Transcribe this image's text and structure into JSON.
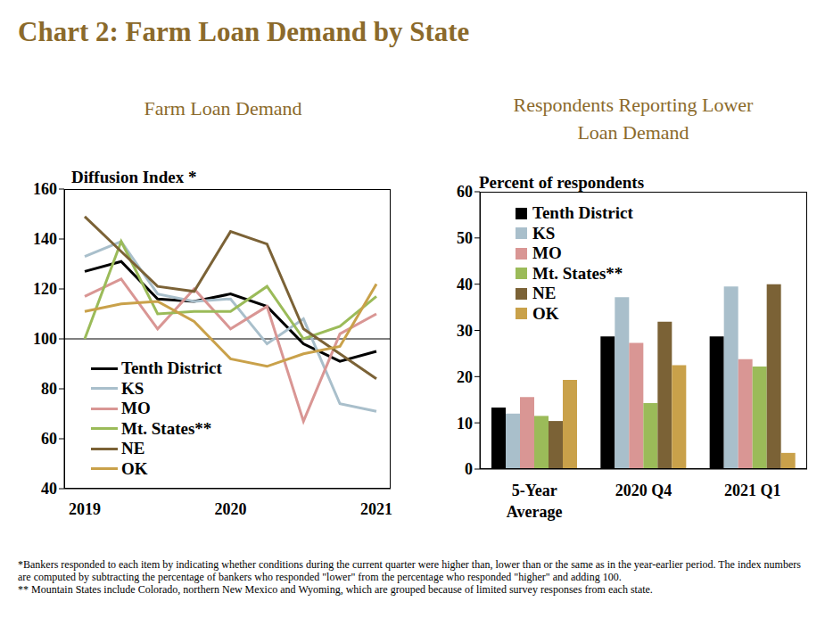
{
  "title": "Chart 2: Farm Loan Demand by State",
  "footnotes": [
    "*Bankers responded to each item by indicating whether conditions during the current quarter were higher than, lower than or the same as in the year-earlier period. The index numbers are computed by subtracting the percentage of bankers who responded \"lower\" from the percentage who responded \"higher\" and adding 100.",
    "** Mountain States include Colorado, northern New Mexico and Wyoming, which are grouped because of limited survey responses from each state."
  ],
  "chart_data": [
    {
      "type": "line",
      "subtitle": "Farm Loan Demand",
      "ylabel": "Diffusion Index *",
      "categories": [
        "2019",
        null,
        null,
        null,
        "2020",
        null,
        null,
        null,
        "2021"
      ],
      "series": [
        {
          "name": "Tenth District",
          "color": "#000000",
          "values": [
            127,
            131,
            116,
            115,
            118,
            113,
            98,
            91,
            95
          ]
        },
        {
          "name": "KS",
          "color": "#A9BFCB",
          "values": [
            133,
            139,
            118,
            115,
            116,
            98,
            108,
            74,
            71
          ]
        },
        {
          "name": "MO",
          "color": "#D99694",
          "values": [
            117,
            124,
            104,
            120,
            104,
            113,
            67,
            102,
            110
          ]
        },
        {
          "name": "Mt. States**",
          "color": "#9BBB59",
          "values": [
            100,
            139,
            110,
            111,
            111,
            121,
            100,
            105,
            117
          ]
        },
        {
          "name": "NE",
          "color": "#7B6236",
          "values": [
            149,
            135,
            121,
            119,
            143,
            138,
            104,
            94,
            84
          ]
        },
        {
          "name": "OK",
          "color": "#C9A14A",
          "values": [
            111,
            114,
            115,
            107,
            92,
            89,
            94,
            97,
            122
          ]
        }
      ],
      "ylim": [
        40,
        160
      ],
      "yticks": [
        40,
        60,
        80,
        100,
        120,
        140,
        160
      ],
      "hlines": [
        100
      ],
      "legend": "lower left",
      "grid": false
    },
    {
      "type": "bar",
      "subtitle": "Respondents Reporting Lower Loan Demand",
      "ylabel": "Percent of respondents",
      "categories": [
        "5-Year Average",
        "2020 Q4",
        "2021 Q1"
      ],
      "series": [
        {
          "name": "Tenth District",
          "color": "#000000",
          "values": [
            13.3,
            28.7,
            28.7
          ]
        },
        {
          "name": "KS",
          "color": "#A9BFCB",
          "values": [
            12,
            37.2,
            39.5
          ]
        },
        {
          "name": "MO",
          "color": "#D99694",
          "values": [
            15.6,
            27.3,
            23.8
          ]
        },
        {
          "name": "Mt. States**",
          "color": "#9BBB59",
          "values": [
            11.5,
            14.3,
            22.2
          ]
        },
        {
          "name": "NE",
          "color": "#7B6236",
          "values": [
            10.4,
            31.9,
            40
          ]
        },
        {
          "name": "OK",
          "color": "#C9A14A",
          "values": [
            19.3,
            22.5,
            3.5
          ]
        }
      ],
      "ylim": [
        0,
        60
      ],
      "yticks": [
        0,
        10,
        20,
        30,
        40,
        50,
        60
      ],
      "legend": "upper left",
      "grid": false
    }
  ]
}
